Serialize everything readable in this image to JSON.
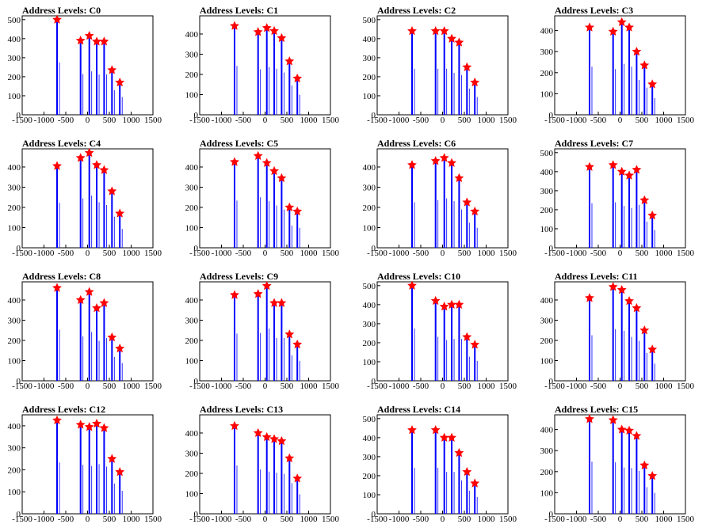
{
  "colors": {
    "spike": "#0000ff",
    "marker": "#ff0000",
    "axis": "#000000",
    "background": "#ffffff"
  },
  "chart_data": [
    {
      "type": "bar",
      "title": "Address Levels: C0",
      "xlim": [
        -1500,
        1500
      ],
      "ylim": [
        0,
        520
      ],
      "x_ticks": [
        -1500,
        -1000,
        -500,
        0,
        500,
        1000,
        1500
      ],
      "y_ticks": [
        0,
        100,
        200,
        300,
        400,
        500
      ],
      "peaks": [
        {
          "x": -700,
          "y": 500
        },
        {
          "x": -160,
          "y": 390
        },
        {
          "x": 40,
          "y": 415
        },
        {
          "x": 210,
          "y": 385
        },
        {
          "x": 380,
          "y": 385
        },
        {
          "x": 560,
          "y": 235
        },
        {
          "x": 740,
          "y": 170
        }
      ]
    },
    {
      "type": "bar",
      "title": "Address Levels: C1",
      "xlim": [
        -1500,
        1500
      ],
      "ylim": [
        0,
        490
      ],
      "x_ticks": [
        -1500,
        -1000,
        -500,
        0,
        500,
        1000,
        1500
      ],
      "y_ticks": [
        0,
        100,
        200,
        300,
        400
      ],
      "peaks": [
        {
          "x": -700,
          "y": 440
        },
        {
          "x": -160,
          "y": 410
        },
        {
          "x": 40,
          "y": 430
        },
        {
          "x": 210,
          "y": 415
        },
        {
          "x": 380,
          "y": 380
        },
        {
          "x": 560,
          "y": 265
        },
        {
          "x": 740,
          "y": 180
        }
      ]
    },
    {
      "type": "bar",
      "title": "Address Levels: C2",
      "xlim": [
        -1500,
        1500
      ],
      "ylim": [
        0,
        520
      ],
      "x_ticks": [
        -1500,
        -1000,
        -500,
        0,
        500,
        1000,
        1500
      ],
      "y_ticks": [
        0,
        100,
        200,
        300,
        400,
        500
      ],
      "peaks": [
        {
          "x": -700,
          "y": 440
        },
        {
          "x": -160,
          "y": 440
        },
        {
          "x": 40,
          "y": 440
        },
        {
          "x": 210,
          "y": 400
        },
        {
          "x": 380,
          "y": 380
        },
        {
          "x": 560,
          "y": 250
        },
        {
          "x": 740,
          "y": 170
        }
      ]
    },
    {
      "type": "bar",
      "title": "Address Levels: C3",
      "xlim": [
        -1500,
        1500
      ],
      "ylim": [
        0,
        470
      ],
      "x_ticks": [
        -1500,
        -1000,
        -500,
        0,
        500,
        1000,
        1500
      ],
      "y_ticks": [
        0,
        100,
        200,
        300,
        400
      ],
      "peaks": [
        {
          "x": -700,
          "y": 415
        },
        {
          "x": -160,
          "y": 395
        },
        {
          "x": 40,
          "y": 440
        },
        {
          "x": 210,
          "y": 415
        },
        {
          "x": 380,
          "y": 300
        },
        {
          "x": 560,
          "y": 235
        },
        {
          "x": 740,
          "y": 145
        }
      ]
    },
    {
      "type": "bar",
      "title": "Address Levels: C4",
      "xlim": [
        -1500,
        1500
      ],
      "ylim": [
        0,
        490
      ],
      "x_ticks": [
        -1500,
        -1000,
        -500,
        0,
        500,
        1000,
        1500
      ],
      "y_ticks": [
        0,
        100,
        200,
        300,
        400
      ],
      "peaks": [
        {
          "x": -700,
          "y": 405
        },
        {
          "x": -160,
          "y": 445
        },
        {
          "x": 40,
          "y": 470
        },
        {
          "x": 210,
          "y": 410
        },
        {
          "x": 380,
          "y": 385
        },
        {
          "x": 560,
          "y": 280
        },
        {
          "x": 740,
          "y": 170
        }
      ]
    },
    {
      "type": "bar",
      "title": "Address Levels: C5",
      "xlim": [
        -1500,
        1500
      ],
      "ylim": [
        0,
        490
      ],
      "x_ticks": [
        -1500,
        -1000,
        -500,
        0,
        500,
        1000,
        1500
      ],
      "y_ticks": [
        0,
        100,
        200,
        300,
        400
      ],
      "peaks": [
        {
          "x": -700,
          "y": 425
        },
        {
          "x": -160,
          "y": 455
        },
        {
          "x": 40,
          "y": 420
        },
        {
          "x": 210,
          "y": 380
        },
        {
          "x": 380,
          "y": 345
        },
        {
          "x": 560,
          "y": 200
        },
        {
          "x": 740,
          "y": 180
        }
      ]
    },
    {
      "type": "bar",
      "title": "Address Levels: C6",
      "xlim": [
        -1500,
        1500
      ],
      "ylim": [
        0,
        490
      ],
      "x_ticks": [
        -1500,
        -1000,
        -500,
        0,
        500,
        1000,
        1500
      ],
      "y_ticks": [
        0,
        100,
        200,
        300,
        400
      ],
      "peaks": [
        {
          "x": -700,
          "y": 410
        },
        {
          "x": -160,
          "y": 430
        },
        {
          "x": 40,
          "y": 445
        },
        {
          "x": 210,
          "y": 420
        },
        {
          "x": 380,
          "y": 345
        },
        {
          "x": 560,
          "y": 225
        },
        {
          "x": 740,
          "y": 180
        }
      ]
    },
    {
      "type": "bar",
      "title": "Address Levels: C7",
      "xlim": [
        -1500,
        1500
      ],
      "ylim": [
        0,
        520
      ],
      "x_ticks": [
        -1500,
        -1000,
        -500,
        0,
        500,
        1000,
        1500
      ],
      "y_ticks": [
        0,
        100,
        200,
        300,
        400,
        500
      ],
      "peaks": [
        {
          "x": -700,
          "y": 425
        },
        {
          "x": -160,
          "y": 435
        },
        {
          "x": 40,
          "y": 400
        },
        {
          "x": 210,
          "y": 380
        },
        {
          "x": 380,
          "y": 410
        },
        {
          "x": 560,
          "y": 250
        },
        {
          "x": 740,
          "y": 170
        }
      ]
    },
    {
      "type": "bar",
      "title": "Address Levels: C8",
      "xlim": [
        -1500,
        1500
      ],
      "ylim": [
        0,
        490
      ],
      "x_ticks": [
        -1500,
        -1000,
        -500,
        0,
        500,
        1000,
        1500
      ],
      "y_ticks": [
        0,
        100,
        200,
        300,
        400
      ],
      "peaks": [
        {
          "x": -700,
          "y": 460
        },
        {
          "x": -160,
          "y": 400
        },
        {
          "x": 40,
          "y": 440
        },
        {
          "x": 210,
          "y": 360
        },
        {
          "x": 380,
          "y": 385
        },
        {
          "x": 560,
          "y": 215
        },
        {
          "x": 740,
          "y": 160
        }
      ]
    },
    {
      "type": "bar",
      "title": "Address Levels: C9",
      "xlim": [
        -1500,
        1500
      ],
      "ylim": [
        0,
        490
      ],
      "x_ticks": [
        -1500,
        -1000,
        -500,
        0,
        500,
        1000,
        1500
      ],
      "y_ticks": [
        0,
        100,
        200,
        300,
        400
      ],
      "peaks": [
        {
          "x": -700,
          "y": 425
        },
        {
          "x": -160,
          "y": 430
        },
        {
          "x": 40,
          "y": 470
        },
        {
          "x": 210,
          "y": 385
        },
        {
          "x": 380,
          "y": 385
        },
        {
          "x": 560,
          "y": 230
        },
        {
          "x": 740,
          "y": 180
        }
      ]
    },
    {
      "type": "bar",
      "title": "Address Levels: C10",
      "xlim": [
        -1500,
        1500
      ],
      "ylim": [
        0,
        520
      ],
      "x_ticks": [
        -1500,
        -1000,
        -500,
        0,
        500,
        1000,
        1500
      ],
      "y_ticks": [
        0,
        100,
        200,
        300,
        400,
        500
      ],
      "peaks": [
        {
          "x": -700,
          "y": 500
        },
        {
          "x": -160,
          "y": 420
        },
        {
          "x": 40,
          "y": 390
        },
        {
          "x": 210,
          "y": 400
        },
        {
          "x": 380,
          "y": 400
        },
        {
          "x": 560,
          "y": 230
        },
        {
          "x": 740,
          "y": 190
        }
      ]
    },
    {
      "type": "bar",
      "title": "Address Levels: C11",
      "xlim": [
        -1500,
        1500
      ],
      "ylim": [
        0,
        490
      ],
      "x_ticks": [
        -1500,
        -1000,
        -500,
        0,
        500,
        1000,
        1500
      ],
      "y_ticks": [
        0,
        100,
        200,
        300,
        400
      ],
      "peaks": [
        {
          "x": -700,
          "y": 410
        },
        {
          "x": -160,
          "y": 465
        },
        {
          "x": 40,
          "y": 450
        },
        {
          "x": 210,
          "y": 395
        },
        {
          "x": 380,
          "y": 360
        },
        {
          "x": 560,
          "y": 250
        },
        {
          "x": 740,
          "y": 155
        }
      ]
    },
    {
      "type": "bar",
      "title": "Address Levels: C12",
      "xlim": [
        -1500,
        1500
      ],
      "ylim": [
        0,
        450
      ],
      "x_ticks": [
        -1500,
        -1000,
        -500,
        0,
        500,
        1000,
        1500
      ],
      "y_ticks": [
        0,
        100,
        200,
        300,
        400
      ],
      "peaks": [
        {
          "x": -700,
          "y": 425
        },
        {
          "x": -160,
          "y": 405
        },
        {
          "x": 40,
          "y": 395
        },
        {
          "x": 210,
          "y": 410
        },
        {
          "x": 380,
          "y": 390
        },
        {
          "x": 560,
          "y": 250
        },
        {
          "x": 740,
          "y": 190
        }
      ]
    },
    {
      "type": "bar",
      "title": "Address Levels: C13",
      "xlim": [
        -1500,
        1500
      ],
      "ylim": [
        0,
        490
      ],
      "x_ticks": [
        -1500,
        -1000,
        -500,
        0,
        500,
        1000,
        1500
      ],
      "y_ticks": [
        0,
        100,
        200,
        300,
        400
      ],
      "peaks": [
        {
          "x": -700,
          "y": 435
        },
        {
          "x": -160,
          "y": 400
        },
        {
          "x": 40,
          "y": 380
        },
        {
          "x": 210,
          "y": 370
        },
        {
          "x": 380,
          "y": 360
        },
        {
          "x": 560,
          "y": 275
        },
        {
          "x": 740,
          "y": 175
        }
      ]
    },
    {
      "type": "bar",
      "title": "Address Levels: C14",
      "xlim": [
        -1500,
        1500
      ],
      "ylim": [
        0,
        520
      ],
      "x_ticks": [
        -1500,
        -1000,
        -500,
        0,
        500,
        1000,
        1500
      ],
      "y_ticks": [
        0,
        100,
        200,
        300,
        400,
        500
      ],
      "peaks": [
        {
          "x": -700,
          "y": 440
        },
        {
          "x": -160,
          "y": 440
        },
        {
          "x": 40,
          "y": 400
        },
        {
          "x": 210,
          "y": 400
        },
        {
          "x": 380,
          "y": 320
        },
        {
          "x": 560,
          "y": 220
        },
        {
          "x": 740,
          "y": 160
        }
      ]
    },
    {
      "type": "bar",
      "title": "Address Levels: C15",
      "xlim": [
        -1500,
        1500
      ],
      "ylim": [
        0,
        470
      ],
      "x_ticks": [
        -1500,
        -1000,
        -500,
        0,
        500,
        1000,
        1500
      ],
      "y_ticks": [
        0,
        100,
        200,
        300,
        400
      ],
      "peaks": [
        {
          "x": -700,
          "y": 450
        },
        {
          "x": -160,
          "y": 445
        },
        {
          "x": 40,
          "y": 400
        },
        {
          "x": 210,
          "y": 395
        },
        {
          "x": 380,
          "y": 370
        },
        {
          "x": 560,
          "y": 230
        },
        {
          "x": 740,
          "y": 180
        }
      ]
    }
  ]
}
